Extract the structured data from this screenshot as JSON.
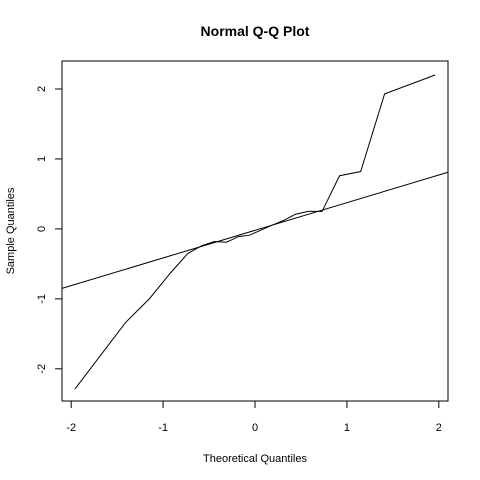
{
  "chart_data": {
    "type": "line",
    "title": "Normal Q-Q Plot",
    "xlabel": "Theoretical Quantiles",
    "ylabel": "Sample Quantiles",
    "xlim": [
      -2.1,
      2.1
    ],
    "ylim": [
      -2.46,
      2.4
    ],
    "x_ticks": [
      -2,
      -1,
      0,
      1,
      2
    ],
    "y_ticks": [
      -2,
      -1,
      0,
      1,
      2
    ],
    "grid": false,
    "legend": "none",
    "colors": {
      "line": "#000000",
      "background": "#ffffff"
    },
    "series": [
      {
        "role": "sample-quantiles",
        "x": [
          -1.96,
          -1.41,
          -1.15,
          -0.92,
          -0.73,
          -0.58,
          -0.44,
          -0.31,
          -0.18,
          -0.06,
          0.06,
          0.18,
          0.31,
          0.44,
          0.58,
          0.73,
          0.92,
          1.15,
          1.41,
          1.96
        ],
        "y": [
          -2.29,
          -1.34,
          -1.0,
          -0.63,
          -0.35,
          -0.24,
          -0.18,
          -0.19,
          -0.11,
          -0.09,
          -0.02,
          0.05,
          0.12,
          0.21,
          0.25,
          0.25,
          0.76,
          0.82,
          1.93,
          2.2
        ]
      },
      {
        "role": "qq-reference-line",
        "x": [
          -2.1,
          2.1
        ],
        "y": [
          -0.85,
          0.81
        ]
      }
    ]
  }
}
